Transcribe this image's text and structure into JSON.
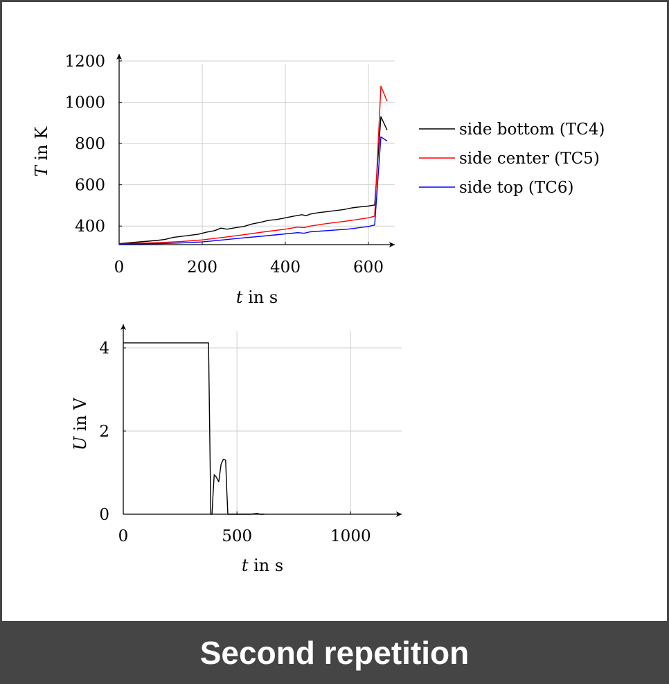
{
  "caption": "Second repetition",
  "chart_data": [
    {
      "type": "line",
      "xlabel_var": "t",
      "xlabel_unit": " in s",
      "ylabel_var": "T",
      "ylabel_unit": " in K",
      "xlim": [
        0,
        650
      ],
      "ylim": [
        310,
        1200
      ],
      "xticks": [
        0,
        200,
        400,
        600
      ],
      "yticks": [
        400,
        600,
        800,
        1000,
        1200
      ],
      "grid": true,
      "legend_position": "right",
      "series": [
        {
          "name": "side bottom (TC4)",
          "color": "#000000",
          "x": [
            0,
            30,
            60,
            90,
            110,
            130,
            150,
            170,
            190,
            210,
            230,
            245,
            260,
            280,
            300,
            320,
            340,
            360,
            380,
            400,
            420,
            440,
            450,
            460,
            480,
            500,
            520,
            540,
            560,
            580,
            600,
            615,
            630,
            645
          ],
          "y": [
            315,
            320,
            325,
            330,
            335,
            345,
            350,
            355,
            360,
            370,
            378,
            390,
            385,
            392,
            398,
            410,
            418,
            428,
            432,
            440,
            448,
            455,
            450,
            458,
            465,
            470,
            475,
            480,
            488,
            493,
            497,
            502,
            930,
            865
          ]
        },
        {
          "name": "side center (TC5)",
          "color": "#ff0000",
          "x": [
            0,
            50,
            100,
            150,
            200,
            250,
            300,
            350,
            400,
            430,
            445,
            460,
            500,
            550,
            600,
            615,
            630,
            645
          ],
          "y": [
            315,
            317,
            320,
            325,
            333,
            345,
            358,
            372,
            385,
            395,
            392,
            400,
            412,
            425,
            440,
            448,
            1078,
            1005
          ]
        },
        {
          "name": "side top (TC6)",
          "color": "#0000ff",
          "x": [
            0,
            50,
            100,
            150,
            200,
            250,
            300,
            350,
            400,
            430,
            445,
            460,
            500,
            550,
            600,
            615,
            630,
            645
          ],
          "y": [
            313,
            314,
            315,
            318,
            323,
            333,
            343,
            352,
            362,
            368,
            365,
            372,
            378,
            385,
            398,
            405,
            832,
            812
          ]
        }
      ]
    },
    {
      "type": "line",
      "xlabel_var": "t",
      "xlabel_unit": " in s",
      "ylabel_var": "U",
      "ylabel_unit": " in V",
      "xlim": [
        0,
        1200
      ],
      "ylim": [
        0,
        4.4
      ],
      "xticks": [
        0,
        500,
        1000
      ],
      "yticks": [
        0,
        2,
        4
      ],
      "grid": true,
      "series": [
        {
          "color": "#000000",
          "x": [
            0,
            375,
            380,
            385,
            390,
            395,
            400,
            408,
            420,
            430,
            440,
            450,
            455,
            460,
            470,
            480,
            490,
            560,
            590,
            600,
            620
          ],
          "y": [
            4.12,
            4.12,
            2.0,
            0.0,
            0.0,
            0.5,
            0.95,
            0.9,
            0.78,
            1.2,
            1.32,
            1.3,
            0.6,
            0.0,
            0.0,
            0.0,
            0.0,
            0.0,
            0.02,
            0.0,
            0.0
          ]
        }
      ]
    }
  ]
}
